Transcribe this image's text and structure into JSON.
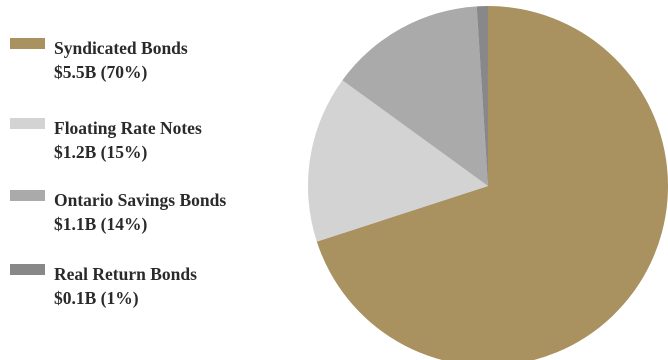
{
  "chart_data": {
    "type": "pie",
    "title": "",
    "slices": [
      {
        "name": "Syndicated Bonds",
        "label": "$5.5B (70%)",
        "value": 70,
        "color": "#A99260"
      },
      {
        "name": "Floating Rate Notes",
        "label": "$1.2B (15%)",
        "value": 15,
        "color": "#D3D3D3"
      },
      {
        "name": "Ontario Savings Bonds",
        "label": "$1.1B (14%)",
        "value": 14,
        "color": "#AAAAAA"
      },
      {
        "name": "Real Return Bonds",
        "label": "$0.1B (1%)",
        "value": 1,
        "color": "#888888"
      }
    ],
    "legend_placement": "left"
  }
}
